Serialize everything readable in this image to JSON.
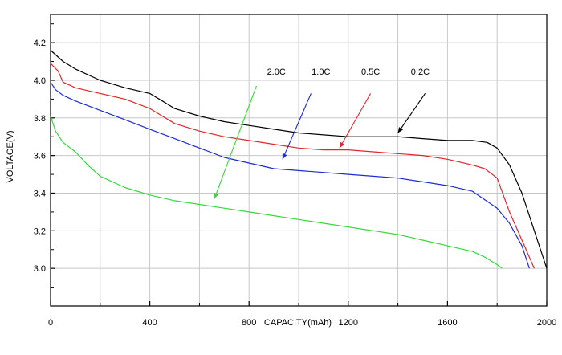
{
  "chart_data": {
    "type": "line",
    "xlabel": "CAPACITY(mAh)",
    "ylabel": "VOLTAGE(V)",
    "xlim": [
      0,
      2000
    ],
    "ylim": [
      2.8,
      4.35
    ],
    "x_ticks": [
      0,
      400,
      800,
      1200,
      1600,
      2000
    ],
    "x_tick_labels": [
      "0",
      "400",
      "800",
      "1200",
      "1600",
      "2000"
    ],
    "y_ticks": [
      3.0,
      3.2,
      3.4,
      3.6,
      3.8,
      4.0,
      4.2
    ],
    "y_tick_labels": [
      "3.0",
      "3.2",
      "3.4",
      "3.6",
      "3.8",
      "4.0",
      "4.2"
    ],
    "grid": true,
    "series": [
      {
        "name": "0.2C",
        "color": "#000000",
        "x": [
          0,
          50,
          100,
          200,
          300,
          400,
          450,
          500,
          600,
          700,
          800,
          900,
          1000,
          1100,
          1200,
          1300,
          1400,
          1500,
          1600,
          1700,
          1760,
          1800,
          1850,
          1900,
          1950,
          2000
        ],
        "y": [
          4.16,
          4.1,
          4.06,
          4.0,
          3.96,
          3.93,
          3.89,
          3.85,
          3.81,
          3.78,
          3.76,
          3.74,
          3.72,
          3.71,
          3.7,
          3.7,
          3.7,
          3.69,
          3.68,
          3.68,
          3.67,
          3.64,
          3.55,
          3.4,
          3.2,
          3.0
        ]
      },
      {
        "name": "0.5C",
        "color": "#e3262b",
        "x": [
          0,
          30,
          50,
          100,
          200,
          300,
          400,
          450,
          500,
          600,
          700,
          800,
          900,
          1000,
          1100,
          1200,
          1300,
          1400,
          1500,
          1600,
          1700,
          1750,
          1800,
          1850,
          1900,
          1950
        ],
        "y": [
          4.09,
          4.05,
          3.99,
          3.96,
          3.93,
          3.9,
          3.85,
          3.81,
          3.77,
          3.73,
          3.7,
          3.68,
          3.66,
          3.64,
          3.63,
          3.63,
          3.62,
          3.61,
          3.6,
          3.58,
          3.55,
          3.53,
          3.48,
          3.3,
          3.15,
          3.0
        ]
      },
      {
        "name": "1.0C",
        "color": "#1f2bd1",
        "x": [
          0,
          20,
          50,
          100,
          200,
          300,
          400,
          500,
          600,
          700,
          800,
          900,
          1000,
          1100,
          1200,
          1300,
          1400,
          1500,
          1600,
          1700,
          1800,
          1850,
          1900,
          1930
        ],
        "y": [
          3.99,
          3.95,
          3.92,
          3.89,
          3.84,
          3.79,
          3.74,
          3.69,
          3.64,
          3.59,
          3.56,
          3.53,
          3.52,
          3.51,
          3.5,
          3.49,
          3.48,
          3.46,
          3.44,
          3.41,
          3.32,
          3.24,
          3.12,
          3.0
        ]
      },
      {
        "name": "2.0C",
        "color": "#34d93a",
        "x": [
          0,
          20,
          50,
          100,
          150,
          200,
          300,
          400,
          500,
          600,
          700,
          800,
          900,
          1000,
          1100,
          1200,
          1300,
          1400,
          1500,
          1600,
          1700,
          1750,
          1800,
          1820
        ],
        "y": [
          3.81,
          3.73,
          3.67,
          3.62,
          3.55,
          3.49,
          3.43,
          3.39,
          3.36,
          3.34,
          3.32,
          3.3,
          3.28,
          3.26,
          3.24,
          3.22,
          3.2,
          3.18,
          3.15,
          3.12,
          3.09,
          3.06,
          3.02,
          3.0
        ]
      }
    ],
    "annotations": [
      {
        "text": "2.0C",
        "series": "2.0C",
        "label_at": [
          910,
          4.03
        ],
        "arrow_from": [
          830,
          3.97
        ],
        "arrow_to": [
          660,
          3.37
        ]
      },
      {
        "text": "1.0C",
        "series": "1.0C",
        "label_at": [
          1090,
          4.03
        ],
        "arrow_from": [
          1050,
          3.93
        ],
        "arrow_to": [
          935,
          3.58
        ]
      },
      {
        "text": "0.5C",
        "series": "0.5C",
        "label_at": [
          1290,
          4.03
        ],
        "arrow_from": [
          1290,
          3.93
        ],
        "arrow_to": [
          1165,
          3.64
        ]
      },
      {
        "text": "0.2C",
        "series": "0.2C",
        "label_at": [
          1490,
          4.03
        ],
        "arrow_from": [
          1510,
          3.93
        ],
        "arrow_to": [
          1400,
          3.72
        ]
      }
    ]
  }
}
